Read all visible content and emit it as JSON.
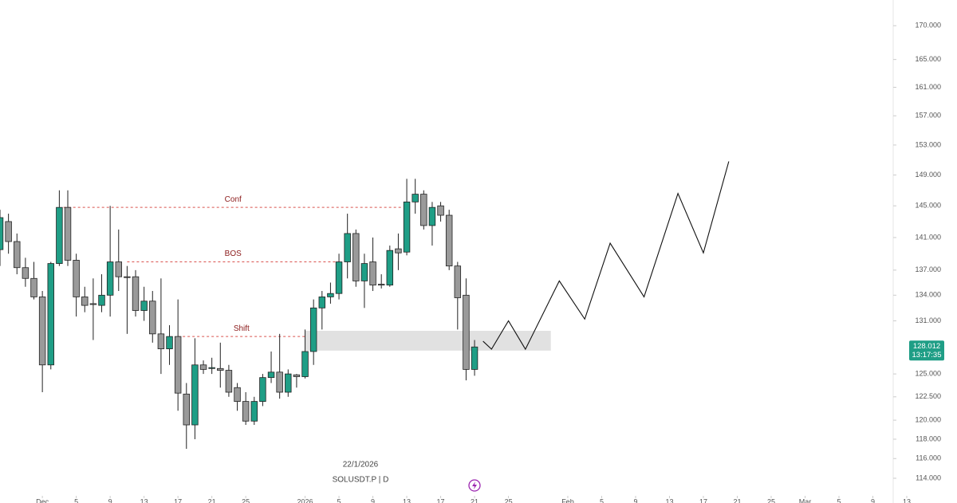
{
  "chart_data": {
    "type": "candlestick",
    "symbol": "SOLUSDT.P | D",
    "crosshair_date": "22/1/2026",
    "log_scale": true,
    "ylim": [
      112.8,
      173.9
    ],
    "yticks": [
      {
        "value": 114,
        "label": "114.000"
      },
      {
        "value": 116,
        "label": "116.000"
      },
      {
        "value": 118,
        "label": "118.000"
      },
      {
        "value": 120,
        "label": "120.000"
      },
      {
        "value": 122.5,
        "label": "122.500"
      },
      {
        "value": 125,
        "label": "125.000"
      },
      {
        "value": 131,
        "label": "131.000"
      },
      {
        "value": 134,
        "label": "134.000"
      },
      {
        "value": 137,
        "label": "137.000"
      },
      {
        "value": 141,
        "label": "141.000"
      },
      {
        "value": 145,
        "label": "145.000"
      },
      {
        "value": 149,
        "label": "149.000"
      },
      {
        "value": 153,
        "label": "153.000"
      },
      {
        "value": 157,
        "label": "157.000"
      },
      {
        "value": 161,
        "label": "161.000"
      },
      {
        "value": 165,
        "label": "165.000"
      },
      {
        "value": 170,
        "label": "170.000"
      }
    ],
    "xlim": [
      0,
      105.4
    ],
    "xticks": [
      {
        "value": 5,
        "label": "Dec"
      },
      {
        "value": 9,
        "label": "5"
      },
      {
        "value": 13,
        "label": "9"
      },
      {
        "value": 17,
        "label": "13"
      },
      {
        "value": 21,
        "label": "17"
      },
      {
        "value": 25,
        "label": "21"
      },
      {
        "value": 29,
        "label": "25"
      },
      {
        "value": 36,
        "label": "2026"
      },
      {
        "value": 40,
        "label": "5"
      },
      {
        "value": 44,
        "label": "9"
      },
      {
        "value": 48,
        "label": "13"
      },
      {
        "value": 52,
        "label": "17"
      },
      {
        "value": 56,
        "label": "21"
      },
      {
        "value": 60,
        "label": "25"
      },
      {
        "value": 67,
        "label": "Feb"
      },
      {
        "value": 71,
        "label": "5"
      },
      {
        "value": 75,
        "label": "9"
      },
      {
        "value": 79,
        "label": "13"
      },
      {
        "value": 83,
        "label": "17"
      },
      {
        "value": 87,
        "label": "21"
      },
      {
        "value": 91,
        "label": "25"
      },
      {
        "value": 95,
        "label": "Mar"
      },
      {
        "value": 99,
        "label": "5"
      },
      {
        "value": 103,
        "label": "9"
      },
      {
        "value": 107,
        "label": "13"
      }
    ],
    "up_color": "#1f9e86",
    "down_color": "#9a9a9a",
    "open": [
      139.5,
      143,
      140.5,
      137.3,
      136,
      133.8,
      126,
      137.8,
      144.8,
      138.2,
      133.8,
      133,
      132.8,
      134,
      138,
      136.2,
      136.2,
      132.2,
      133.3,
      129.5,
      127.8,
      129.2,
      122.8,
      119.5,
      126,
      125.6,
      125.6,
      125.4,
      123.5,
      122,
      119.9,
      122,
      124.6,
      125.2,
      123,
      124.9,
      124.7,
      127.5,
      132.5,
      133.8,
      134.2,
      138,
      141.5,
      135.7,
      138,
      135.3,
      135.2,
      139.6,
      139.2,
      145.5,
      146.5,
      142.5,
      145,
      143.8,
      137.5,
      134,
      125.5
    ],
    "high": [
      144.5,
      144,
      141.5,
      138.5,
      138,
      134.5,
      138,
      147,
      147,
      139,
      135,
      136,
      136.5,
      145,
      142,
      137.5,
      137,
      135,
      134.5,
      136,
      130.5,
      133.5,
      124,
      129,
      126.5,
      126.8,
      128.5,
      126,
      124,
      123,
      122.5,
      125,
      127.5,
      129.5,
      125.5,
      125,
      130,
      133.5,
      134.5,
      135.5,
      139,
      144,
      142,
      139,
      141,
      136.5,
      140,
      141.5,
      148.5,
      148.5,
      147,
      145.5,
      145.5,
      144.5,
      138,
      136,
      128.8
    ],
    "low": [
      137.5,
      139,
      136.5,
      135,
      133.5,
      123,
      125.5,
      137.5,
      137.5,
      131.5,
      132,
      128.8,
      132,
      131.5,
      134.5,
      129.5,
      131.5,
      131,
      128.5,
      125,
      126,
      121,
      117,
      118,
      125,
      125,
      123.5,
      122.5,
      121,
      119.5,
      119.5,
      121.5,
      124,
      122.3,
      122.5,
      123.5,
      124.5,
      126,
      130,
      133,
      133.5,
      136,
      135,
      132.5,
      134.5,
      134.8,
      135,
      137,
      138.8,
      144,
      142,
      140,
      143,
      137,
      130,
      124.3,
      124.8
    ],
    "close": [
      143.5,
      140.5,
      137.3,
      136,
      133.8,
      126,
      137.8,
      144.8,
      138.2,
      133.8,
      132.8,
      132.9,
      134,
      138,
      136.2,
      136.1,
      132.2,
      133.3,
      129.5,
      127.8,
      129.2,
      122.9,
      119.5,
      126,
      125.5,
      125.7,
      125.4,
      123,
      122,
      119.9,
      122,
      124.6,
      125.2,
      123,
      125,
      124.7,
      127.5,
      132.5,
      133.8,
      134.2,
      138,
      141.5,
      135.7,
      137.8,
      135.2,
      135.2,
      139.4,
      139.1,
      145.5,
      146.5,
      142.5,
      144.8,
      143.8,
      137.5,
      133.7,
      125.5,
      128.012
    ],
    "levels": [
      {
        "label": "Conf",
        "value": 144.8,
        "x": [
          7.5,
          47.5
        ]
      },
      {
        "label": "BOS",
        "value": 138,
        "x": [
          15,
          40
        ]
      },
      {
        "label": "Shift",
        "value": 129.2,
        "x": [
          21,
          36
        ]
      }
    ],
    "zone": {
      "x": [
        36,
        65
      ],
      "values": [
        127.6,
        129.85
      ]
    },
    "projection": {
      "x": [
        57,
        58,
        60,
        62,
        66,
        69,
        72,
        76,
        80,
        83,
        86
      ],
      "values": [
        128.66,
        127.76,
        131.0,
        127.76,
        135.7,
        131.2,
        140.3,
        133.8,
        146.6,
        139.1,
        150.8
      ]
    },
    "last_price": {
      "value": 128.012,
      "label": "128.012",
      "countdown": "13:17:35"
    }
  }
}
